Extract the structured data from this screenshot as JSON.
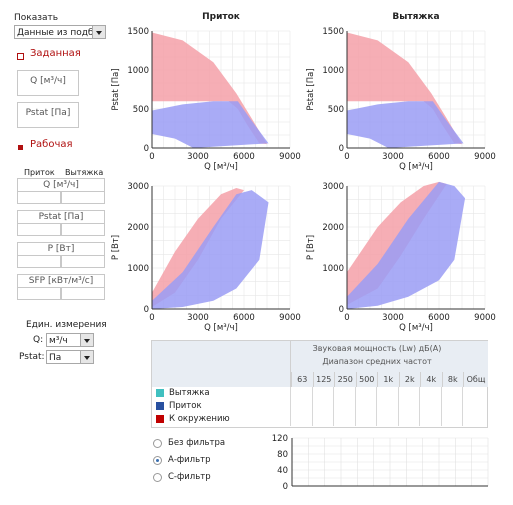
{
  "left": {
    "show_label": "Показать",
    "show_value": "Данные из подбо",
    "target_title": "Заданная",
    "target_q": "Q [м³/ч]",
    "target_p": "Pstat [Па]",
    "working_title": "Рабочая",
    "col_supply": "Приток",
    "col_exhaust": "Вытяжка",
    "work_q": "Q [м³/ч]",
    "work_p": "Pstat [Па]",
    "work_power": "P [Вт]",
    "work_sfp": "SFP [кВт/м³/с]",
    "units_title": "Един. измерения",
    "q_label": "Q:",
    "q_value": "м³/ч",
    "p_label": "Pstat:",
    "p_value": "Па"
  },
  "colors": {
    "supply": "#9a9cf4",
    "exhaust": "#f4a0a8",
    "env": "#c00000",
    "teal": "#40c0c0",
    "blue": "#2850a0"
  },
  "charts": {
    "pressure_supply": {
      "title": "Приток",
      "ylabel": "Pstat [Па]",
      "xlabel": "Q [м³/ч]",
      "yticks": [
        "0",
        "500",
        "1000",
        "1500"
      ],
      "xticks": [
        "0",
        "3000",
        "6000",
        "9000"
      ]
    },
    "pressure_exhaust": {
      "title": "Вытяжка",
      "ylabel": "Pstat [Па]",
      "xlabel": "Q [м³/ч]",
      "yticks": [
        "0",
        "500",
        "1000",
        "1500"
      ],
      "xticks": [
        "0",
        "3000",
        "6000",
        "9000"
      ]
    },
    "power_supply": {
      "ylabel": "P [Вт]",
      "xlabel": "Q [м³/ч]",
      "yticks": [
        "0",
        "1000",
        "2000",
        "3000"
      ],
      "xticks": [
        "0",
        "3000",
        "6000",
        "9000"
      ]
    },
    "power_exhaust": {
      "ylabel": "P [Вт]",
      "xlabel": "Q [м³/ч]",
      "yticks": [
        "0",
        "1000",
        "2000",
        "3000"
      ],
      "xticks": [
        "0",
        "3000",
        "6000",
        "9000"
      ]
    }
  },
  "chart_data": [
    {
      "type": "area",
      "name": "pressure_supply",
      "title": "Приток",
      "xlabel": "Q [м³/ч]",
      "ylabel": "Pstat [Па]",
      "xlim": [
        0,
        9000
      ],
      "ylim": [
        0,
        1500
      ],
      "series": [
        {
          "color": "exhaust",
          "upper": [
            [
              0,
              1480
            ],
            [
              2000,
              1380
            ],
            [
              4000,
              1100
            ],
            [
              5500,
              700
            ],
            [
              6500,
              380
            ],
            [
              7500,
              50
            ]
          ],
          "lower": [
            [
              0,
              600
            ],
            [
              5000,
              600
            ],
            [
              5600,
              500
            ],
            [
              6200,
              300
            ],
            [
              7000,
              60
            ]
          ]
        },
        {
          "color": "supply",
          "upper": [
            [
              0,
              480
            ],
            [
              2000,
              560
            ],
            [
              4000,
              600
            ],
            [
              5600,
              600
            ],
            [
              6500,
              350
            ],
            [
              7600,
              60
            ]
          ],
          "lower": [
            [
              0,
              180
            ],
            [
              1500,
              120
            ],
            [
              2700,
              0
            ]
          ]
        }
      ]
    },
    {
      "type": "area",
      "name": "pressure_exhaust",
      "title": "Вытяжка",
      "xlabel": "Q [м³/ч]",
      "ylabel": "Pstat [Па]",
      "xlim": [
        0,
        9000
      ],
      "ylim": [
        0,
        1500
      ],
      "series": [
        {
          "color": "exhaust",
          "upper": [
            [
              0,
              1480
            ],
            [
              2000,
              1380
            ],
            [
              4000,
              1100
            ],
            [
              5500,
              700
            ],
            [
              6500,
              380
            ],
            [
              7500,
              50
            ]
          ],
          "lower": [
            [
              0,
              600
            ],
            [
              5000,
              600
            ],
            [
              5600,
              500
            ],
            [
              6200,
              300
            ],
            [
              7000,
              60
            ]
          ]
        },
        {
          "color": "supply",
          "upper": [
            [
              0,
              480
            ],
            [
              2000,
              560
            ],
            [
              4000,
              600
            ],
            [
              5600,
              600
            ],
            [
              6500,
              350
            ],
            [
              7600,
              60
            ]
          ],
          "lower": [
            [
              0,
              180
            ],
            [
              1500,
              120
            ],
            [
              2700,
              0
            ]
          ]
        }
      ]
    },
    {
      "type": "area",
      "name": "power_supply",
      "xlabel": "Q [м³/ч]",
      "ylabel": "P [Вт]",
      "xlim": [
        0,
        9000
      ],
      "ylim": [
        0,
        3000
      ],
      "series": [
        {
          "color": "exhaust",
          "upper": [
            [
              0,
              400
            ],
            [
              1500,
              1400
            ],
            [
              3000,
              2200
            ],
            [
              4500,
              2800
            ],
            [
              5500,
              2950
            ],
            [
              6000,
              2900
            ]
          ],
          "lower": [
            [
              0,
              50
            ],
            [
              1500,
              400
            ],
            [
              3000,
              1200
            ],
            [
              4500,
              2200
            ],
            [
              6000,
              2900
            ]
          ]
        },
        {
          "color": "supply",
          "upper": [
            [
              0,
              200
            ],
            [
              2000,
              900
            ],
            [
              4000,
              2000
            ],
            [
              5500,
              2800
            ],
            [
              6500,
              2900
            ],
            [
              7600,
              2600
            ]
          ],
          "lower": [
            [
              0,
              0
            ],
            [
              2000,
              50
            ],
            [
              4000,
              200
            ],
            [
              5500,
              500
            ],
            [
              7000,
              1200
            ],
            [
              7600,
              2600
            ]
          ]
        }
      ]
    },
    {
      "type": "area",
      "name": "power_exhaust",
      "xlabel": "Q [м³/ч]",
      "ylabel": "P [Вт]",
      "xlim": [
        0,
        9000
      ],
      "ylim": [
        0,
        3000
      ],
      "series": [
        {
          "color": "exhaust",
          "upper": [
            [
              0,
              900
            ],
            [
              2000,
              2000
            ],
            [
              3500,
              2600
            ],
            [
              5000,
              3000
            ],
            [
              6000,
              3100
            ],
            [
              6500,
              3050
            ]
          ],
          "lower": [
            [
              0,
              100
            ],
            [
              2000,
              500
            ],
            [
              3500,
              1300
            ],
            [
              5000,
              2200
            ],
            [
              6500,
              3050
            ]
          ]
        },
        {
          "color": "supply",
          "upper": [
            [
              0,
              300
            ],
            [
              2000,
              1100
            ],
            [
              4000,
              2200
            ],
            [
              6000,
              3100
            ],
            [
              7000,
              3000
            ],
            [
              7700,
              2700
            ]
          ],
          "lower": [
            [
              0,
              0
            ],
            [
              2000,
              80
            ],
            [
              4000,
              300
            ],
            [
              6000,
              700
            ],
            [
              7000,
              1200
            ],
            [
              7700,
              2700
            ]
          ]
        }
      ]
    }
  ],
  "sound": {
    "header": "Звуковая мощность (Lw) дБ(A)",
    "subheader": "Диапазон средних частот",
    "freqs": [
      "63",
      "125",
      "250",
      "500",
      "1k",
      "2k",
      "4k",
      "8k"
    ],
    "total": "Общ",
    "rows": [
      {
        "label": "Вытяжка",
        "color": "teal"
      },
      {
        "label": "Приток",
        "color": "blue"
      },
      {
        "label": "К окружению",
        "color": "env"
      }
    ]
  },
  "filters": {
    "options": [
      {
        "label": "Без фильтра",
        "selected": false
      },
      {
        "label": "А-фильтр",
        "selected": true
      },
      {
        "label": "С-фильтр",
        "selected": false
      }
    ],
    "yticks": [
      "120",
      "80",
      "40",
      "0"
    ]
  }
}
